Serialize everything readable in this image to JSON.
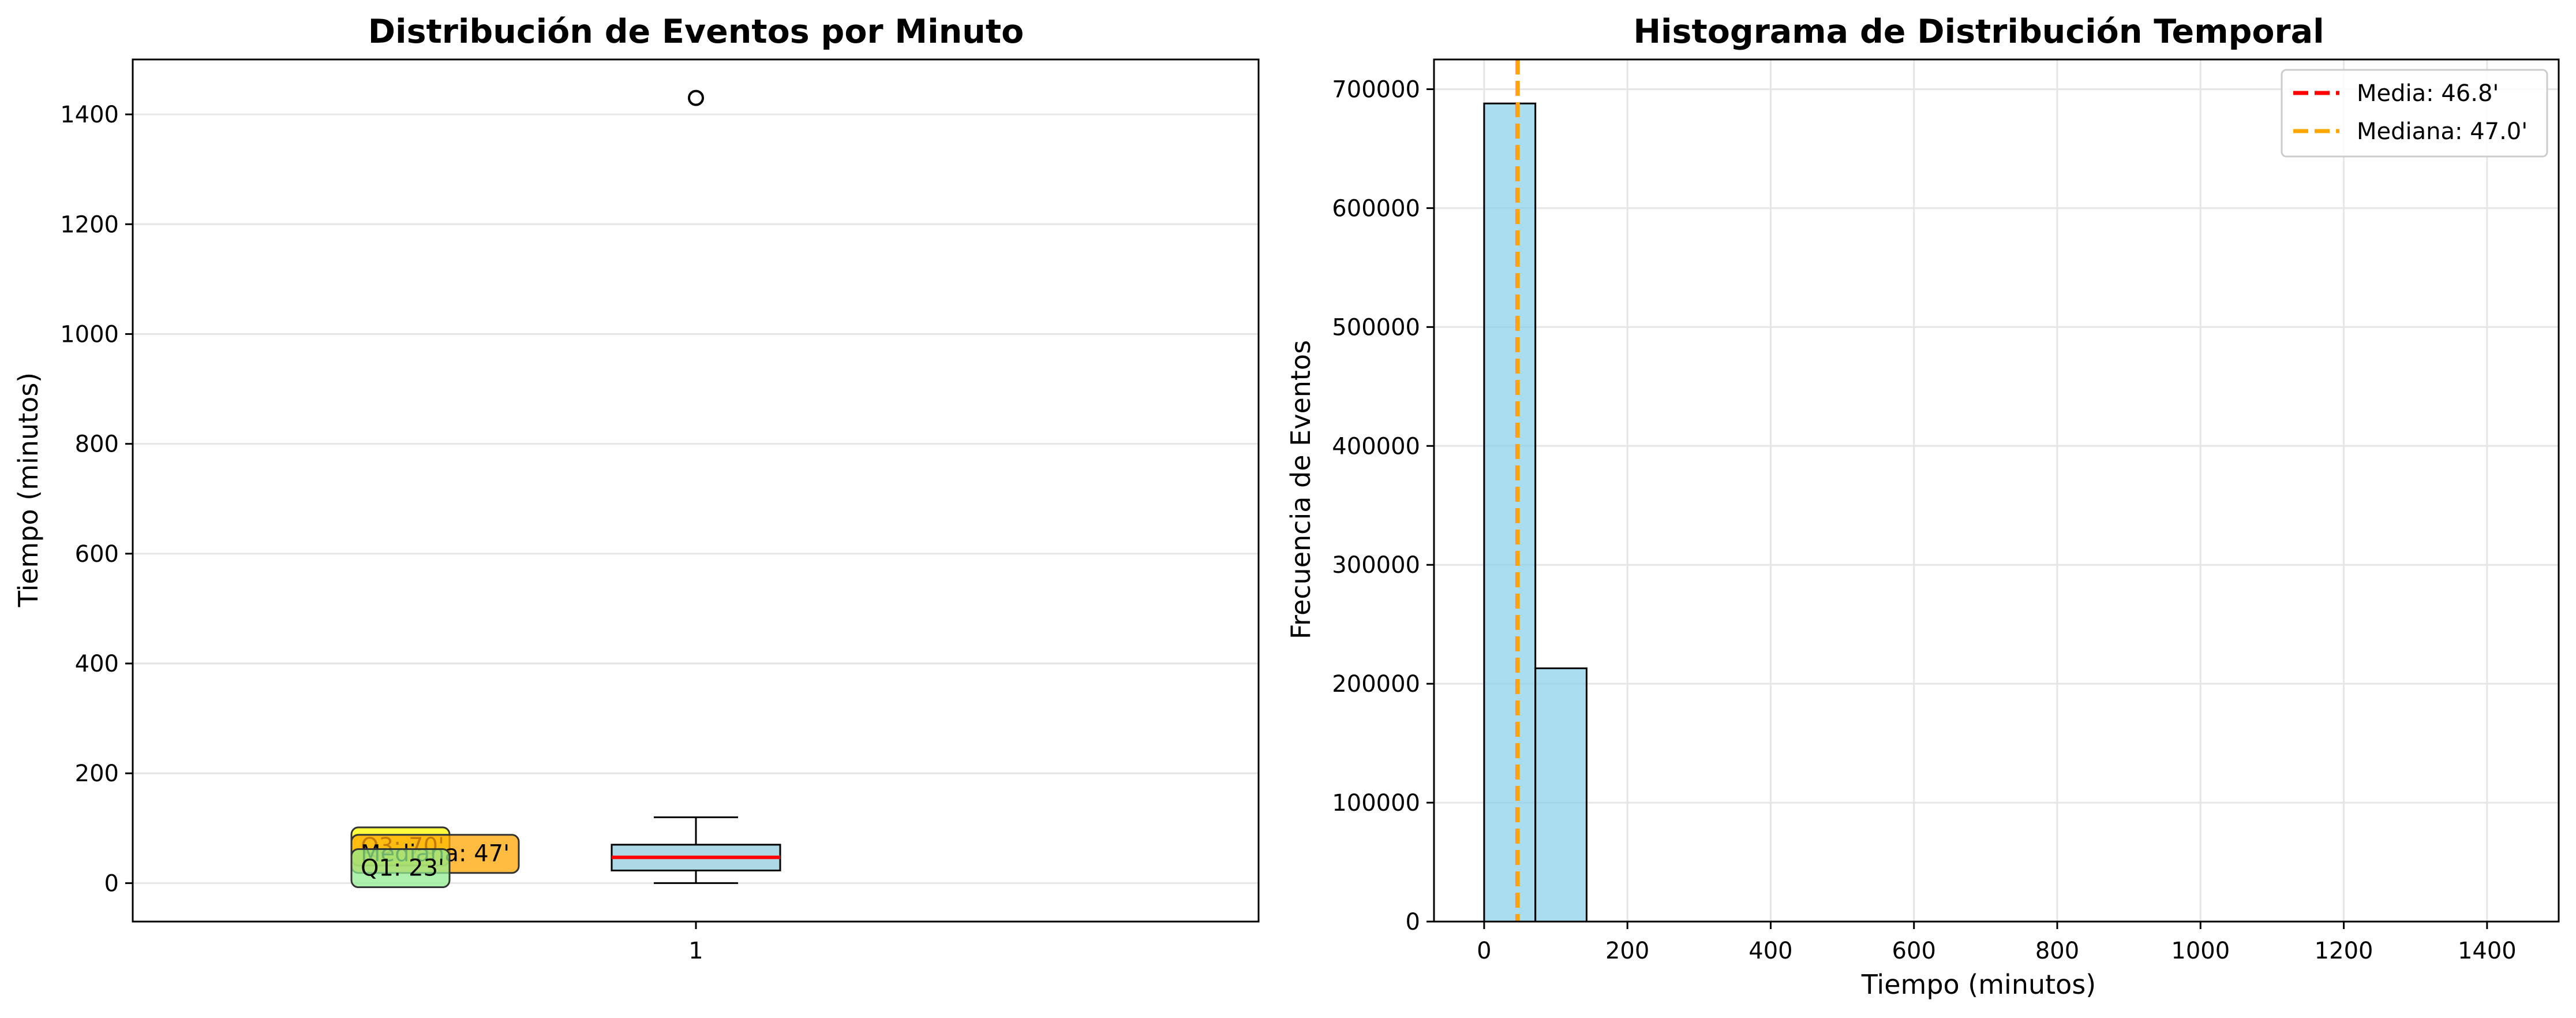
{
  "chart_data": [
    {
      "type": "box",
      "title": "Distribución de Eventos por Minuto",
      "xlabel": "",
      "ylabel": "Tiempo (minutos)",
      "ylim": [
        -70,
        1500
      ],
      "yticks": [
        0,
        200,
        400,
        600,
        800,
        1000,
        1200,
        1400
      ],
      "xticks": [
        "1"
      ],
      "grid": "y",
      "box": {
        "category": "1",
        "min": 0,
        "q1": 23,
        "median": 47,
        "q3": 70,
        "whisker_high": 120,
        "outliers": [
          1430
        ],
        "box_color": "#add8e6",
        "median_color": "#ff0000"
      },
      "annotations": [
        {
          "text": "Q3: 70'",
          "value": 70,
          "color": "#ffff00"
        },
        {
          "text": "Mediana: 47'",
          "value": 47,
          "color": "#ffa500"
        },
        {
          "text": "Q1: 23'",
          "value": 23,
          "color": "#90ee90"
        }
      ]
    },
    {
      "type": "histogram",
      "title": "Histograma de Distribución Temporal",
      "xlabel": "Tiempo (minutos)",
      "ylabel": "Frecuencia de Eventos",
      "xlim": [
        -70,
        1500
      ],
      "ylim": [
        0,
        725000
      ],
      "xticks": [
        0,
        200,
        400,
        600,
        800,
        1000,
        1200,
        1400
      ],
      "yticks": [
        0,
        100000,
        200000,
        300000,
        400000,
        500000,
        600000,
        700000
      ],
      "grid": "both",
      "bar_color": "#87ceeb",
      "bins": [
        {
          "start": 0,
          "end": 71.5,
          "count": 688000
        },
        {
          "start": 71.5,
          "end": 143,
          "count": 213000
        }
      ],
      "lines": [
        {
          "label": "Media: 46.8'",
          "value": 46.8,
          "color": "#ff0000"
        },
        {
          "label": "Mediana: 47.0'",
          "value": 47.0,
          "color": "#ffa500"
        }
      ],
      "legend": "top-right"
    }
  ]
}
